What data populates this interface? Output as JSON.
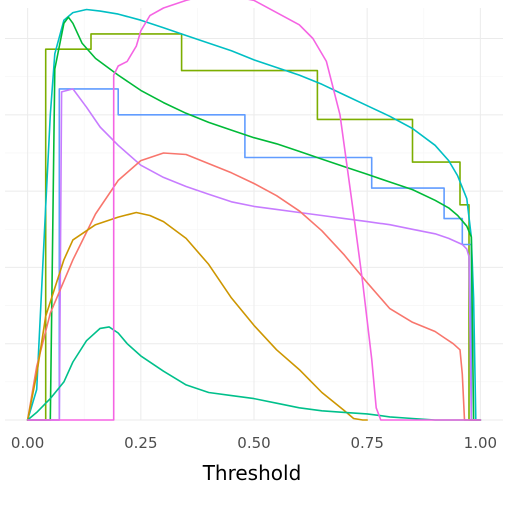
{
  "chart_data": {
    "type": "line",
    "title": "",
    "xlabel": "Threshold",
    "ylabel": "",
    "xlim": [
      -0.05,
      1.05
    ],
    "ylim": [
      0,
      0.27
    ],
    "x_ticks": [
      0.0,
      0.25,
      0.5,
      0.75,
      1.0
    ],
    "x_tick_labels": [
      "0.00",
      "0.25",
      "0.50",
      "0.75",
      "1.00"
    ],
    "y_ticks_minor": [
      0.025,
      0.075,
      0.125,
      0.175,
      0.225
    ],
    "y_ticks_major": [
      0.0,
      0.05,
      0.1,
      0.15,
      0.2,
      0.25
    ],
    "y_tick_labels_visible": false,
    "grid": true,
    "legend": "none",
    "series": [
      {
        "color": "#7cae00",
        "x": [
          0.0,
          0.04,
          0.04,
          0.14,
          0.14,
          0.34,
          0.34,
          0.64,
          0.64,
          0.85,
          0.85,
          0.955,
          0.955,
          0.975,
          0.975,
          0.98,
          0.98,
          1.0
        ],
        "y": [
          0.0,
          0.0,
          0.243,
          0.243,
          0.253,
          0.253,
          0.229,
          0.229,
          0.197,
          0.197,
          0.169,
          0.169,
          0.141,
          0.141,
          0.0,
          0.0,
          0.0,
          0.0
        ]
      },
      {
        "color": "#619cff",
        "x": [
          0.0,
          0.07,
          0.07,
          0.2,
          0.2,
          0.48,
          0.48,
          0.76,
          0.76,
          0.92,
          0.92,
          0.96,
          0.96,
          0.98,
          0.98,
          1.0
        ],
        "y": [
          0.0,
          0.0,
          0.217,
          0.217,
          0.2,
          0.2,
          0.172,
          0.172,
          0.152,
          0.152,
          0.132,
          0.132,
          0.115,
          0.115,
          0.0,
          0.0
        ]
      },
      {
        "color": "#00bfc4",
        "x": [
          0.0,
          0.02,
          0.04,
          0.05,
          0.06,
          0.08,
          0.1,
          0.13,
          0.16,
          0.2,
          0.25,
          0.3,
          0.35,
          0.4,
          0.45,
          0.5,
          0.55,
          0.6,
          0.65,
          0.7,
          0.75,
          0.8,
          0.85,
          0.9,
          0.93,
          0.95,
          0.97,
          0.98,
          0.985,
          0.99,
          1.0
        ],
        "y": [
          0.0,
          0.02,
          0.14,
          0.2,
          0.24,
          0.262,
          0.267,
          0.269,
          0.268,
          0.266,
          0.262,
          0.257,
          0.252,
          0.247,
          0.242,
          0.236,
          0.231,
          0.226,
          0.22,
          0.213,
          0.206,
          0.199,
          0.191,
          0.18,
          0.17,
          0.16,
          0.145,
          0.12,
          0.08,
          0.0,
          0.0
        ]
      },
      {
        "color": "#00ba38",
        "x": [
          0.0,
          0.05,
          0.06,
          0.08,
          0.09,
          0.1,
          0.12,
          0.15,
          0.2,
          0.25,
          0.3,
          0.35,
          0.4,
          0.45,
          0.5,
          0.55,
          0.6,
          0.65,
          0.7,
          0.75,
          0.8,
          0.85,
          0.9,
          0.93,
          0.95,
          0.97,
          0.98,
          0.985,
          1.0
        ],
        "y": [
          0.0,
          0.0,
          0.23,
          0.26,
          0.264,
          0.26,
          0.247,
          0.237,
          0.226,
          0.216,
          0.208,
          0.201,
          0.195,
          0.19,
          0.185,
          0.181,
          0.176,
          0.171,
          0.166,
          0.161,
          0.156,
          0.151,
          0.144,
          0.139,
          0.134,
          0.127,
          0.12,
          0.0,
          0.0
        ]
      },
      {
        "color": "#c77cff",
        "x": [
          0.0,
          0.07,
          0.075,
          0.1,
          0.13,
          0.16,
          0.2,
          0.25,
          0.3,
          0.35,
          0.4,
          0.45,
          0.5,
          0.55,
          0.6,
          0.65,
          0.7,
          0.75,
          0.8,
          0.85,
          0.9,
          0.93,
          0.96,
          0.97,
          0.975,
          0.98,
          1.0
        ],
        "y": [
          0.0,
          0.0,
          0.215,
          0.217,
          0.205,
          0.192,
          0.18,
          0.167,
          0.159,
          0.153,
          0.148,
          0.143,
          0.14,
          0.138,
          0.136,
          0.134,
          0.132,
          0.13,
          0.128,
          0.125,
          0.122,
          0.119,
          0.115,
          0.112,
          0.107,
          0.0,
          0.0
        ]
      },
      {
        "color": "#f8766d",
        "x": [
          0.0,
          0.02,
          0.05,
          0.1,
          0.15,
          0.2,
          0.25,
          0.3,
          0.35,
          0.4,
          0.45,
          0.5,
          0.55,
          0.6,
          0.65,
          0.7,
          0.75,
          0.8,
          0.85,
          0.9,
          0.92,
          0.94,
          0.955,
          0.96,
          0.965,
          1.0
        ],
        "y": [
          0.0,
          0.035,
          0.07,
          0.105,
          0.135,
          0.157,
          0.17,
          0.175,
          0.174,
          0.168,
          0.162,
          0.155,
          0.147,
          0.137,
          0.124,
          0.108,
          0.09,
          0.073,
          0.064,
          0.058,
          0.054,
          0.05,
          0.046,
          0.03,
          0.0,
          0.0
        ]
      },
      {
        "color": "#cd9600",
        "x": [
          0.0,
          0.02,
          0.04,
          0.08,
          0.1,
          0.15,
          0.2,
          0.24,
          0.27,
          0.3,
          0.35,
          0.4,
          0.45,
          0.5,
          0.55,
          0.6,
          0.65,
          0.7,
          0.72,
          0.74,
          0.75
        ],
        "y": [
          0.0,
          0.03,
          0.068,
          0.105,
          0.118,
          0.128,
          0.133,
          0.136,
          0.134,
          0.13,
          0.119,
          0.102,
          0.08,
          0.062,
          0.046,
          0.033,
          0.018,
          0.006,
          0.001,
          0.0,
          0.0
        ]
      },
      {
        "color": "#00c08b",
        "x": [
          0.0,
          0.02,
          0.05,
          0.08,
          0.1,
          0.13,
          0.16,
          0.18,
          0.2,
          0.22,
          0.25,
          0.3,
          0.35,
          0.4,
          0.45,
          0.5,
          0.55,
          0.6,
          0.65,
          0.7,
          0.75,
          0.8,
          0.85,
          0.9,
          0.95,
          1.0
        ],
        "y": [
          0.0,
          0.005,
          0.014,
          0.025,
          0.038,
          0.052,
          0.06,
          0.061,
          0.057,
          0.05,
          0.042,
          0.032,
          0.023,
          0.018,
          0.016,
          0.014,
          0.011,
          0.008,
          0.006,
          0.005,
          0.004,
          0.002,
          0.001,
          0.0,
          0.0,
          0.0
        ]
      },
      {
        "color": "#f564e3",
        "x": [
          0.0,
          0.19,
          0.19,
          0.2,
          0.22,
          0.24,
          0.25,
          0.27,
          0.3,
          0.35,
          0.4,
          0.45,
          0.5,
          0.55,
          0.6,
          0.63,
          0.66,
          0.69,
          0.72,
          0.74,
          0.76,
          0.77,
          0.78,
          0.8,
          1.0
        ],
        "y": [
          0.0,
          0.0,
          0.226,
          0.232,
          0.235,
          0.245,
          0.255,
          0.265,
          0.27,
          0.275,
          0.279,
          0.278,
          0.275,
          0.267,
          0.259,
          0.25,
          0.235,
          0.2,
          0.135,
          0.09,
          0.04,
          0.008,
          0.0,
          0.0,
          0.0
        ]
      }
    ]
  }
}
